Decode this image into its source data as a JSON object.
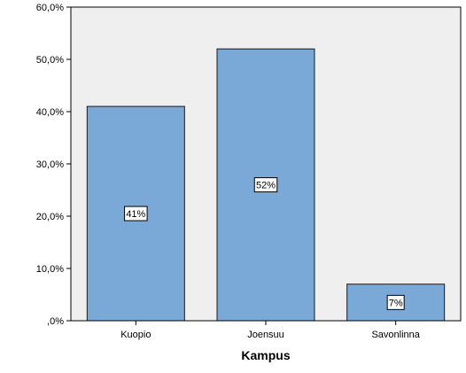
{
  "chart_data": {
    "type": "bar",
    "title": "",
    "xlabel": "Kampus",
    "ylabel": "",
    "categories": [
      "Kuopio",
      "Joensuu",
      "Savonlinna"
    ],
    "values": [
      41,
      52,
      7
    ],
    "data_labels": [
      "41%",
      "52%",
      "7%"
    ],
    "ylim": [
      0,
      60
    ],
    "y_ticks": [
      0,
      10,
      20,
      30,
      40,
      50,
      60
    ],
    "y_tick_labels": [
      ",0%",
      "10,0%",
      "20,0%",
      "30,0%",
      "40,0%",
      "50,0%",
      "60,0%"
    ],
    "grid": false,
    "legend": "none",
    "colors": {
      "bar_fill": "#7aa9d8",
      "bar_stroke": "#1a1a1a",
      "plot_background": "#efefef",
      "axis": "#000000",
      "label_box_fill": "#ffffff"
    }
  }
}
